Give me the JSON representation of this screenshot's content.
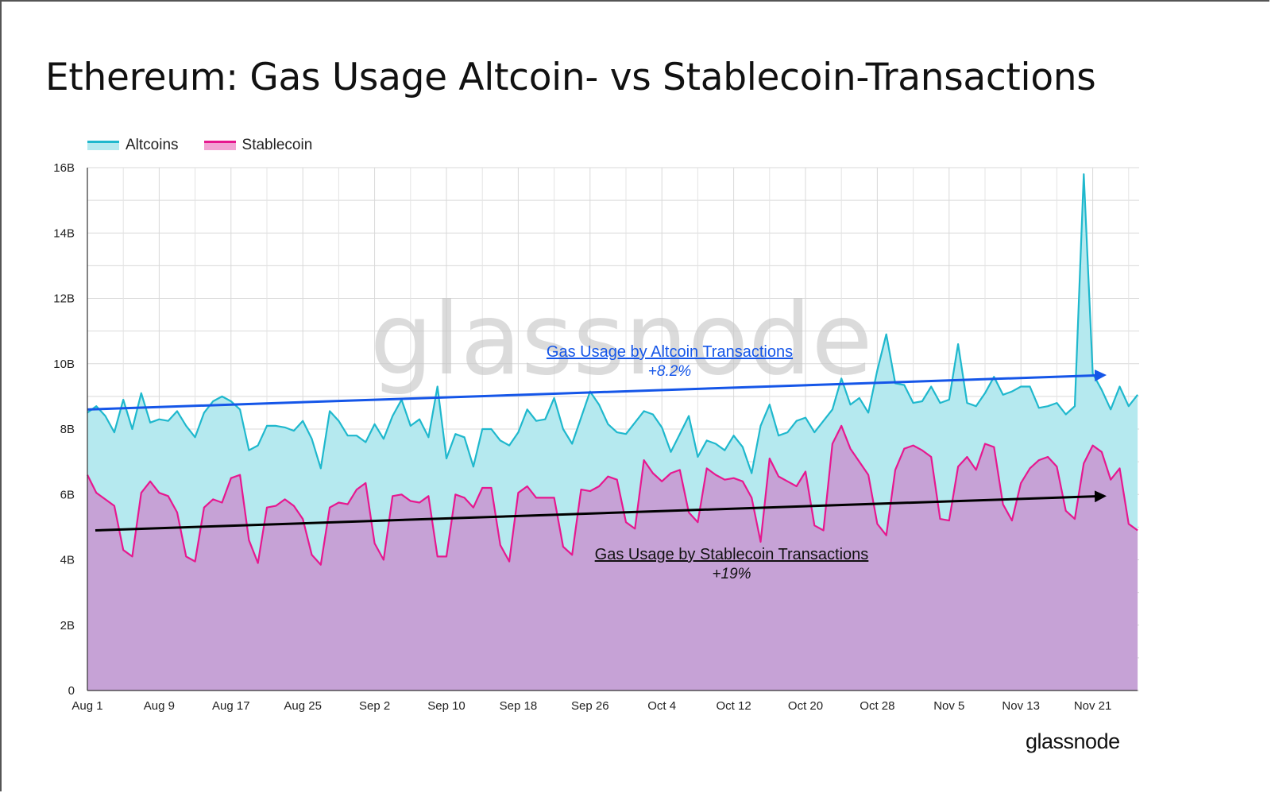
{
  "title": "Ethereum: Gas Usage Altcoin- vs Stablecoin-Transactions",
  "watermark": "glassnode",
  "brand": "glassnode",
  "colors": {
    "altcoins_line": "#1fb8cd",
    "altcoins_fill": "#b5e9ef",
    "stablecoin_line": "#e6188f",
    "stablecoin_fill": "#c6a2d6",
    "altcoin_trend": "#1556e8",
    "stablecoin_trend": "#000000"
  },
  "legend": [
    {
      "label": "Altcoins",
      "color": "#1fb8cd"
    },
    {
      "label": "Stablecoin",
      "color": "#e6188f"
    }
  ],
  "annotations": {
    "altcoin_title": "Gas Usage by Altcoin Transactions",
    "altcoin_pct": "+8.2%",
    "stablecoin_title": "Gas Usage by Stablecoin Transactions",
    "stablecoin_pct": "+19%"
  },
  "chart_data": {
    "type": "area",
    "x_start": "Aug 1",
    "x_tick_labels": [
      "Aug 1",
      "Aug 9",
      "Aug 17",
      "Aug 25",
      "Sep 2",
      "Sep 10",
      "Sep 18",
      "Sep 26",
      "Oct 4",
      "Oct 12",
      "Oct 20",
      "Oct 28",
      "Nov 5",
      "Nov 13",
      "Nov 21"
    ],
    "y_tick_labels": [
      "0",
      "2B",
      "4B",
      "6B",
      "8B",
      "10B",
      "12B",
      "14B",
      "16B"
    ],
    "ylim": [
      0,
      16
    ],
    "grid": true,
    "legend_position": "top-left",
    "series": [
      {
        "name": "Altcoins",
        "values": [
          8.5,
          8.7,
          8.4,
          7.9,
          8.9,
          8.0,
          9.1,
          8.2,
          8.3,
          8.25,
          8.55,
          8.1,
          7.75,
          8.5,
          8.85,
          9.0,
          8.85,
          8.6,
          7.35,
          7.5,
          8.1,
          8.1,
          8.05,
          7.95,
          8.25,
          7.7,
          6.8,
          8.55,
          8.25,
          7.8,
          7.8,
          7.6,
          8.15,
          7.7,
          8.4,
          8.9,
          8.1,
          8.3,
          7.75,
          9.3,
          7.1,
          7.85,
          7.75,
          6.85,
          8.0,
          8.0,
          7.65,
          7.5,
          7.9,
          8.6,
          8.25,
          8.3,
          8.95,
          8.0,
          7.55,
          8.35,
          9.15,
          8.75,
          8.15,
          7.9,
          7.85,
          8.2,
          8.55,
          8.45,
          8.05,
          7.3,
          7.85,
          8.4,
          7.15,
          7.65,
          7.55,
          7.35,
          7.8,
          7.45,
          6.65,
          8.1,
          8.75,
          7.8,
          7.9,
          8.25,
          8.35,
          7.9,
          8.25,
          8.6,
          9.55,
          8.75,
          8.95,
          8.5,
          9.8,
          10.9,
          9.4,
          9.35,
          8.8,
          8.85,
          9.3,
          8.8,
          8.9,
          10.6,
          8.8,
          8.7,
          9.1,
          9.6,
          9.05,
          9.15,
          9.3,
          9.3,
          8.65,
          8.7,
          8.8,
          8.45,
          8.7,
          15.8,
          9.7,
          9.2,
          8.6,
          9.3,
          8.7,
          9.05
        ]
      },
      {
        "name": "Stablecoin",
        "values": [
          6.6,
          6.05,
          5.85,
          5.65,
          4.3,
          4.1,
          6.05,
          6.4,
          6.05,
          5.95,
          5.45,
          4.1,
          3.95,
          5.6,
          5.85,
          5.75,
          6.5,
          6.6,
          4.6,
          3.9,
          5.6,
          5.65,
          5.85,
          5.65,
          5.25,
          4.15,
          3.85,
          5.6,
          5.75,
          5.7,
          6.15,
          6.35,
          4.5,
          4.0,
          5.95,
          6.0,
          5.8,
          5.75,
          5.95,
          4.1,
          4.1,
          6.0,
          5.9,
          5.6,
          6.2,
          6.2,
          4.45,
          3.95,
          6.05,
          6.25,
          5.9,
          5.9,
          5.9,
          4.4,
          4.15,
          6.15,
          6.1,
          6.25,
          6.55,
          6.45,
          5.15,
          4.95,
          7.05,
          6.65,
          6.4,
          6.65,
          6.75,
          5.45,
          5.15,
          6.8,
          6.6,
          6.45,
          6.5,
          6.4,
          5.9,
          4.55,
          7.1,
          6.55,
          6.4,
          6.25,
          6.7,
          5.05,
          4.9,
          7.55,
          8.1,
          7.4,
          7.0,
          6.6,
          5.1,
          4.75,
          6.75,
          7.4,
          7.5,
          7.35,
          7.15,
          5.25,
          5.2,
          6.85,
          7.15,
          6.75,
          7.55,
          7.45,
          5.7,
          5.2,
          6.35,
          6.8,
          7.05,
          7.15,
          6.85,
          5.5,
          5.25,
          6.95,
          7.5,
          7.3,
          6.45,
          6.8,
          5.1,
          4.9
        ]
      }
    ],
    "trend_lines": [
      {
        "series": "Altcoins",
        "from": 8.6,
        "to": 9.65
      },
      {
        "series": "Stablecoin",
        "from": 4.9,
        "to": 5.95
      }
    ]
  }
}
